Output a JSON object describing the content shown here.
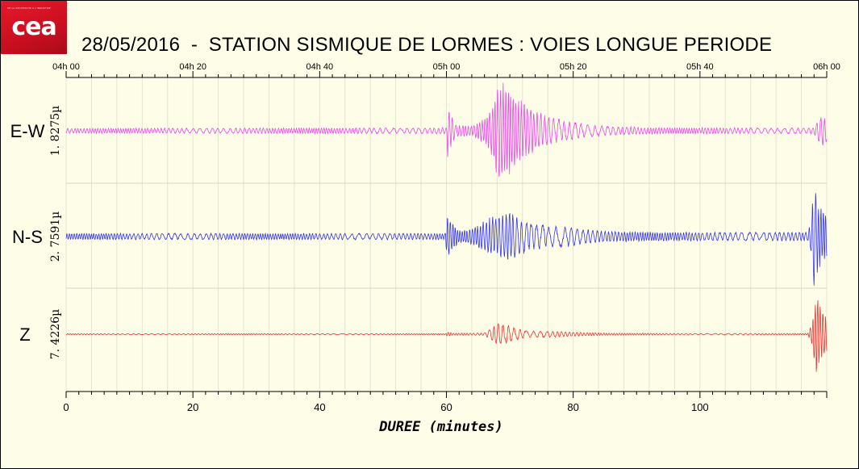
{
  "logo": {
    "text": "cea",
    "subtitle": "DE LA RECHERCHE À L'INDUSTRIE"
  },
  "chart_data": {
    "type": "line",
    "title": "28/05/2016  -  STATION SISMIQUE DE LORMES : VOIES LONGUE PERIODE",
    "xlabel": "DUREE (minutes)",
    "xlim": [
      0,
      120
    ],
    "x_ticks": [
      0,
      20,
      40,
      60,
      80,
      100
    ],
    "x_tick_labels": [
      "0",
      "20",
      "40",
      "60",
      "80",
      "100"
    ],
    "top_axis_ticks": [
      0,
      20,
      40,
      60,
      80,
      100,
      120
    ],
    "top_axis_labels": [
      "04h 00",
      "04h 20",
      "04h 40",
      "05h 00",
      "05h 20",
      "05h 40",
      "06h 00"
    ],
    "grid": true,
    "series": [
      {
        "name": "E-W",
        "scale": "1. 8275µ",
        "color": "#ee44ee",
        "noise_amplitude": 0.05,
        "envelope": [
          [
            0,
            0.05
          ],
          [
            60.0,
            0.06
          ],
          [
            60.2,
            0.55
          ],
          [
            60.6,
            0.35
          ],
          [
            61.5,
            0.12
          ],
          [
            64,
            0.1
          ],
          [
            66,
            0.25
          ],
          [
            67.5,
            0.6
          ],
          [
            68.2,
            1.0
          ],
          [
            69.5,
            0.95
          ],
          [
            71,
            0.7
          ],
          [
            73,
            0.5
          ],
          [
            75,
            0.35
          ],
          [
            78,
            0.22
          ],
          [
            82,
            0.14
          ],
          [
            86,
            0.09
          ],
          [
            95,
            0.06
          ],
          [
            118,
            0.06
          ],
          [
            118.5,
            0.2
          ],
          [
            119,
            0.3
          ],
          [
            120,
            0.25
          ]
        ]
      },
      {
        "name": "N-S",
        "scale": "2. 7591µ",
        "color": "#3333ee",
        "noise_amplitude": 0.07,
        "envelope": [
          [
            0,
            0.06
          ],
          [
            59.8,
            0.06
          ],
          [
            60.1,
            0.45
          ],
          [
            60.7,
            0.3
          ],
          [
            62,
            0.12
          ],
          [
            64,
            0.15
          ],
          [
            66,
            0.3
          ],
          [
            68,
            0.4
          ],
          [
            70,
            0.5
          ],
          [
            71,
            0.4
          ],
          [
            73,
            0.25
          ],
          [
            77,
            0.2
          ],
          [
            80,
            0.18
          ],
          [
            85,
            0.1
          ],
          [
            95,
            0.08
          ],
          [
            117,
            0.08
          ],
          [
            117.5,
            0.3
          ],
          [
            118.0,
            1.0
          ],
          [
            118.6,
            0.7
          ],
          [
            119.3,
            0.5
          ],
          [
            120,
            0.45
          ]
        ]
      },
      {
        "name": "Z",
        "scale": "7. 4226µ",
        "color": "#ee3333",
        "noise_amplitude": 0.015,
        "envelope": [
          [
            0,
            0.015
          ],
          [
            59.9,
            0.015
          ],
          [
            60.2,
            0.06
          ],
          [
            61,
            0.025
          ],
          [
            66,
            0.03
          ],
          [
            67.5,
            0.2
          ],
          [
            68.3,
            0.28
          ],
          [
            70,
            0.2
          ],
          [
            72,
            0.1
          ],
          [
            74,
            0.08
          ],
          [
            78,
            0.07
          ],
          [
            81,
            0.045
          ],
          [
            86,
            0.025
          ],
          [
            100,
            0.018
          ],
          [
            117,
            0.02
          ],
          [
            117.2,
            0.1
          ],
          [
            117.8,
            0.35
          ],
          [
            118.3,
            1.0
          ],
          [
            119,
            0.7
          ],
          [
            120,
            0.4
          ]
        ]
      }
    ]
  }
}
